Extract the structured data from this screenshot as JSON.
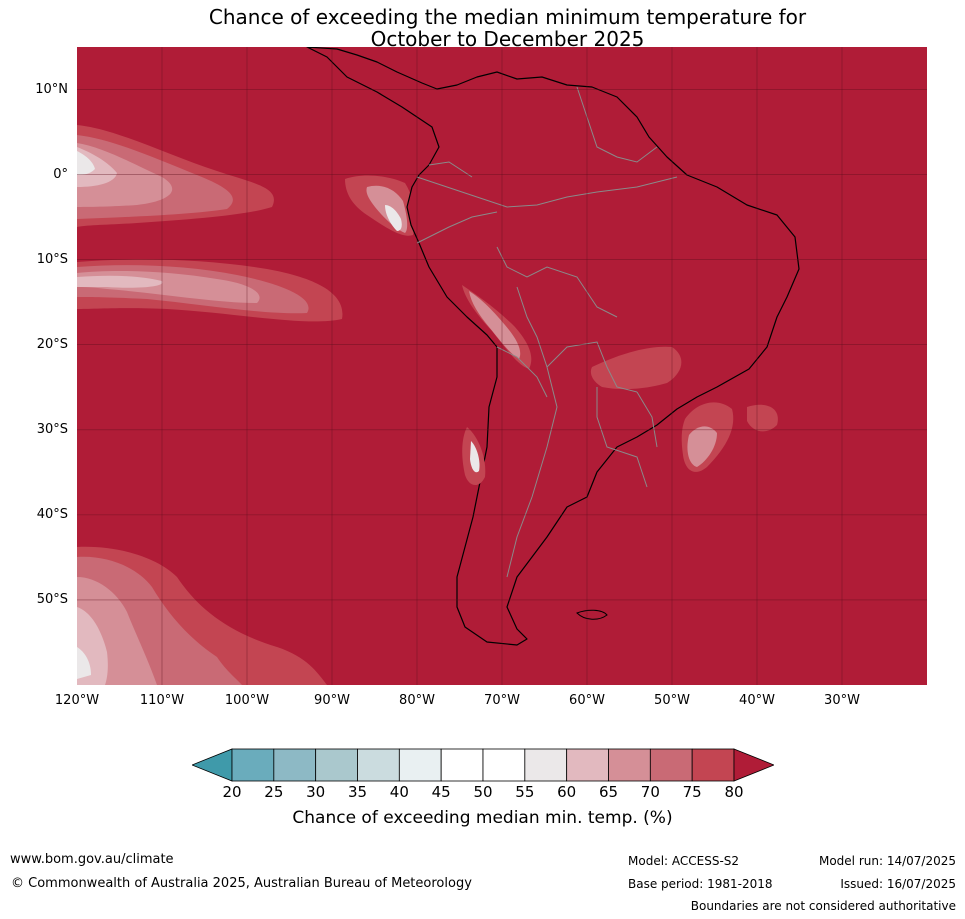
{
  "title_line1": "Chance of exceeding the median minimum temperature for",
  "title_line2": "October to December 2025",
  "lat_labels": [
    "10°N",
    "0°",
    "10°S",
    "20°S",
    "30°S",
    "40°S",
    "50°S"
  ],
  "lon_labels": [
    "120°W",
    "110°W",
    "100°W",
    "90°W",
    "80°W",
    "70°W",
    "60°W",
    "50°W",
    "40°W",
    "30°W"
  ],
  "map_bounds": {
    "lon_min": -120,
    "lon_max": -20,
    "lat_min": -60,
    "lat_max": 15
  },
  "background_category": ">80",
  "colorbar": {
    "ticks": [
      "20",
      "25",
      "30",
      "35",
      "40",
      "45",
      "50",
      "55",
      "60",
      "65",
      "70",
      "75",
      "80"
    ],
    "colors": [
      "#3f9aaa",
      "#6aacbc",
      "#8db9c5",
      "#aac8cd",
      "#cbdcdf",
      "#e9f0f2",
      "#ffffff",
      "#ffffff",
      "#ebe8e9",
      "#e2b9bf",
      "#d58f97",
      "#c96a75",
      "#c34552",
      "#b01c37"
    ],
    "label": "Chance of exceeding median min. temp. (%)"
  },
  "footer": {
    "url": "www.bom.gov.au/climate",
    "copyright": "© Commonwealth of Australia 2025, Australian Bureau of Meteorology",
    "model": "Model: ACCESS-S2",
    "base_period": "Base period: 1981-2018",
    "model_run": "Model run: 14/07/2025",
    "issued": "Issued: 16/07/2025",
    "disclaimer": "Boundaries are not considered authoritative"
  }
}
